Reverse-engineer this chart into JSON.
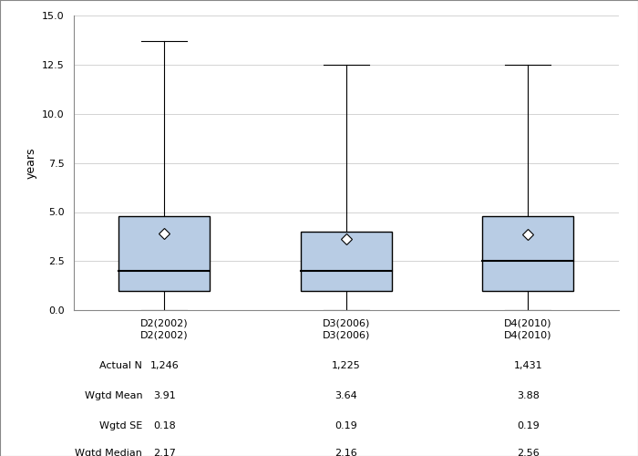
{
  "categories": [
    "D2(2002)",
    "D3(2006)",
    "D4(2010)"
  ],
  "boxes": [
    {
      "q1": 1.0,
      "median": 2.0,
      "q3": 4.8,
      "whisker_low": 0.0,
      "whisker_high": 13.7,
      "mean": 3.91
    },
    {
      "q1": 1.0,
      "median": 2.0,
      "q3": 4.0,
      "whisker_low": 0.0,
      "whisker_high": 12.5,
      "mean": 3.64
    },
    {
      "q1": 1.0,
      "median": 2.5,
      "q3": 4.8,
      "whisker_low": 0.0,
      "whisker_high": 12.5,
      "mean": 3.88
    }
  ],
  "actual_n": [
    "1,246",
    "1,225",
    "1,431"
  ],
  "wgtd_mean": [
    "3.91",
    "3.64",
    "3.88"
  ],
  "wgtd_se": [
    "0.18",
    "0.19",
    "0.19"
  ],
  "wgtd_median": [
    "2.17",
    "2.16",
    "2.56"
  ],
  "ylabel": "years",
  "ylim": [
    0,
    15
  ],
  "yticks": [
    0.0,
    2.5,
    5.0,
    7.5,
    10.0,
    12.5,
    15.0
  ],
  "box_color": "#b8cce4",
  "box_edge_color": "#000000",
  "median_color": "#000000",
  "whisker_color": "#000000",
  "mean_marker": "D",
  "mean_marker_color": "#ffffff",
  "mean_marker_edge_color": "#000000",
  "background_color": "#ffffff",
  "grid_color": "#d3d3d3",
  "table_labels": [
    "Actual N",
    "Wgtd Mean",
    "Wgtd SE",
    "Wgtd Median"
  ],
  "box_width": 0.5,
  "positions": [
    1,
    2,
    3
  ],
  "figure_border_color": "#999999"
}
